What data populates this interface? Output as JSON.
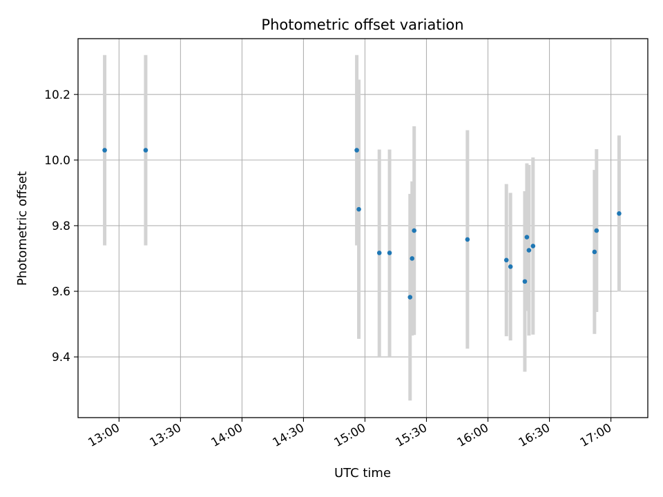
{
  "chart_data": {
    "type": "scatter",
    "title": "Photometric offset variation",
    "xlabel": "UTC time",
    "ylabel": "Photometric offset",
    "x_ticks": [
      "13:00",
      "13:30",
      "14:00",
      "14:30",
      "15:00",
      "15:30",
      "16:00",
      "16:30",
      "17:00"
    ],
    "y_ticks": [
      9.4,
      9.6,
      9.8,
      10.0,
      10.2
    ],
    "xlim": [
      "12:40",
      "17:18"
    ],
    "ylim": [
      9.215,
      10.37
    ],
    "grid": true,
    "marker_color": "#1f77b4",
    "errorbar_color": "#d3d3d3",
    "points": [
      {
        "x": "12:53",
        "y": 10.03,
        "err": 0.29
      },
      {
        "x": "13:13",
        "y": 10.03,
        "err": 0.29
      },
      {
        "x": "14:56",
        "y": 10.03,
        "err": 0.29
      },
      {
        "x": "14:57",
        "y": 9.85,
        "err": 0.395
      },
      {
        "x": "15:07",
        "y": 9.717,
        "err": 0.315
      },
      {
        "x": "15:12",
        "y": 9.717,
        "err": 0.315
      },
      {
        "x": "15:22",
        "y": 9.582,
        "err": 0.315
      },
      {
        "x": "15:23",
        "y": 9.7,
        "err": 0.235
      },
      {
        "x": "15:24",
        "y": 9.785,
        "err": 0.318
      },
      {
        "x": "15:50",
        "y": 9.758,
        "err": 0.333
      },
      {
        "x": "16:09",
        "y": 9.695,
        "err": 0.232
      },
      {
        "x": "16:11",
        "y": 9.675,
        "err": 0.225
      },
      {
        "x": "16:18",
        "y": 9.63,
        "err": 0.275
      },
      {
        "x": "16:19",
        "y": 9.765,
        "err": 0.225
      },
      {
        "x": "16:20",
        "y": 9.725,
        "err": 0.26
      },
      {
        "x": "16:22",
        "y": 9.738,
        "err": 0.27
      },
      {
        "x": "16:52",
        "y": 9.72,
        "err": 0.25
      },
      {
        "x": "16:53",
        "y": 9.785,
        "err": 0.248
      },
      {
        "x": "17:04",
        "y": 9.837,
        "err": 0.238
      }
    ]
  }
}
